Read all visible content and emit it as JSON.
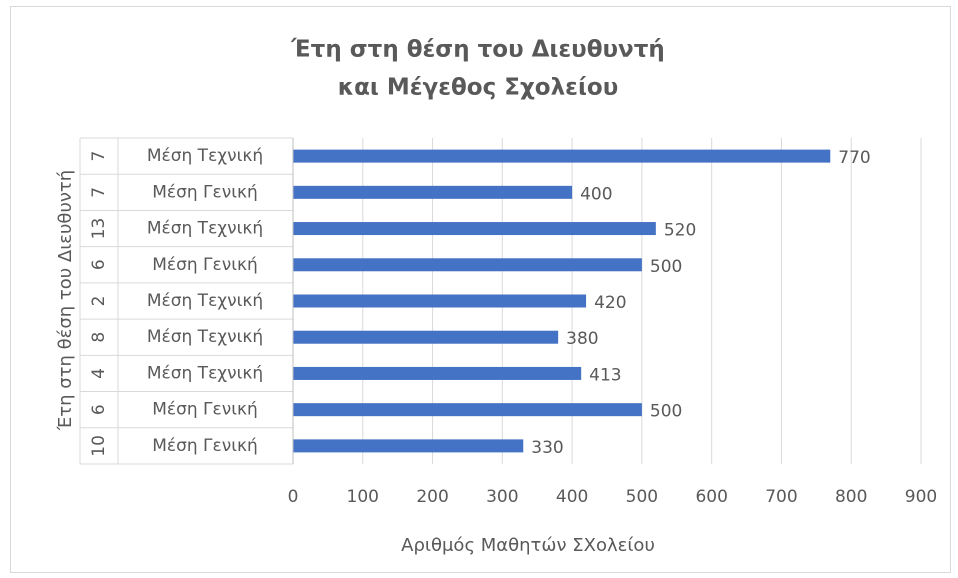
{
  "chart_data": {
    "type": "bar",
    "orientation": "horizontal",
    "title": [
      "Έτη στη θέση του Διευθυντή",
      "και Μέγεθος Σχολείου"
    ],
    "x_label": "Αριθμός Μαθητών ΣΧολείου",
    "y_label": "Έτη στη θέση του Διευθυντή",
    "outer_categories": [
      7,
      7,
      13,
      6,
      2,
      8,
      4,
      6,
      10
    ],
    "categories": [
      "Μέση Τεχνική",
      "Μέση Γενική",
      "Μέση Τεχνική",
      "Μέση Γενική",
      "Μέση Τεχνική",
      "Μέση Τεχνική",
      "Μέση Τεχνική",
      "Μέση Γενική",
      "Μέση Γενική"
    ],
    "values": [
      770,
      400,
      520,
      500,
      420,
      380,
      413,
      500,
      330
    ],
    "color": "#4472c4",
    "xlim": [
      0,
      900
    ],
    "xticks": [
      0,
      100,
      200,
      300,
      400,
      500,
      600,
      700,
      800,
      900
    ],
    "grid": true
  }
}
